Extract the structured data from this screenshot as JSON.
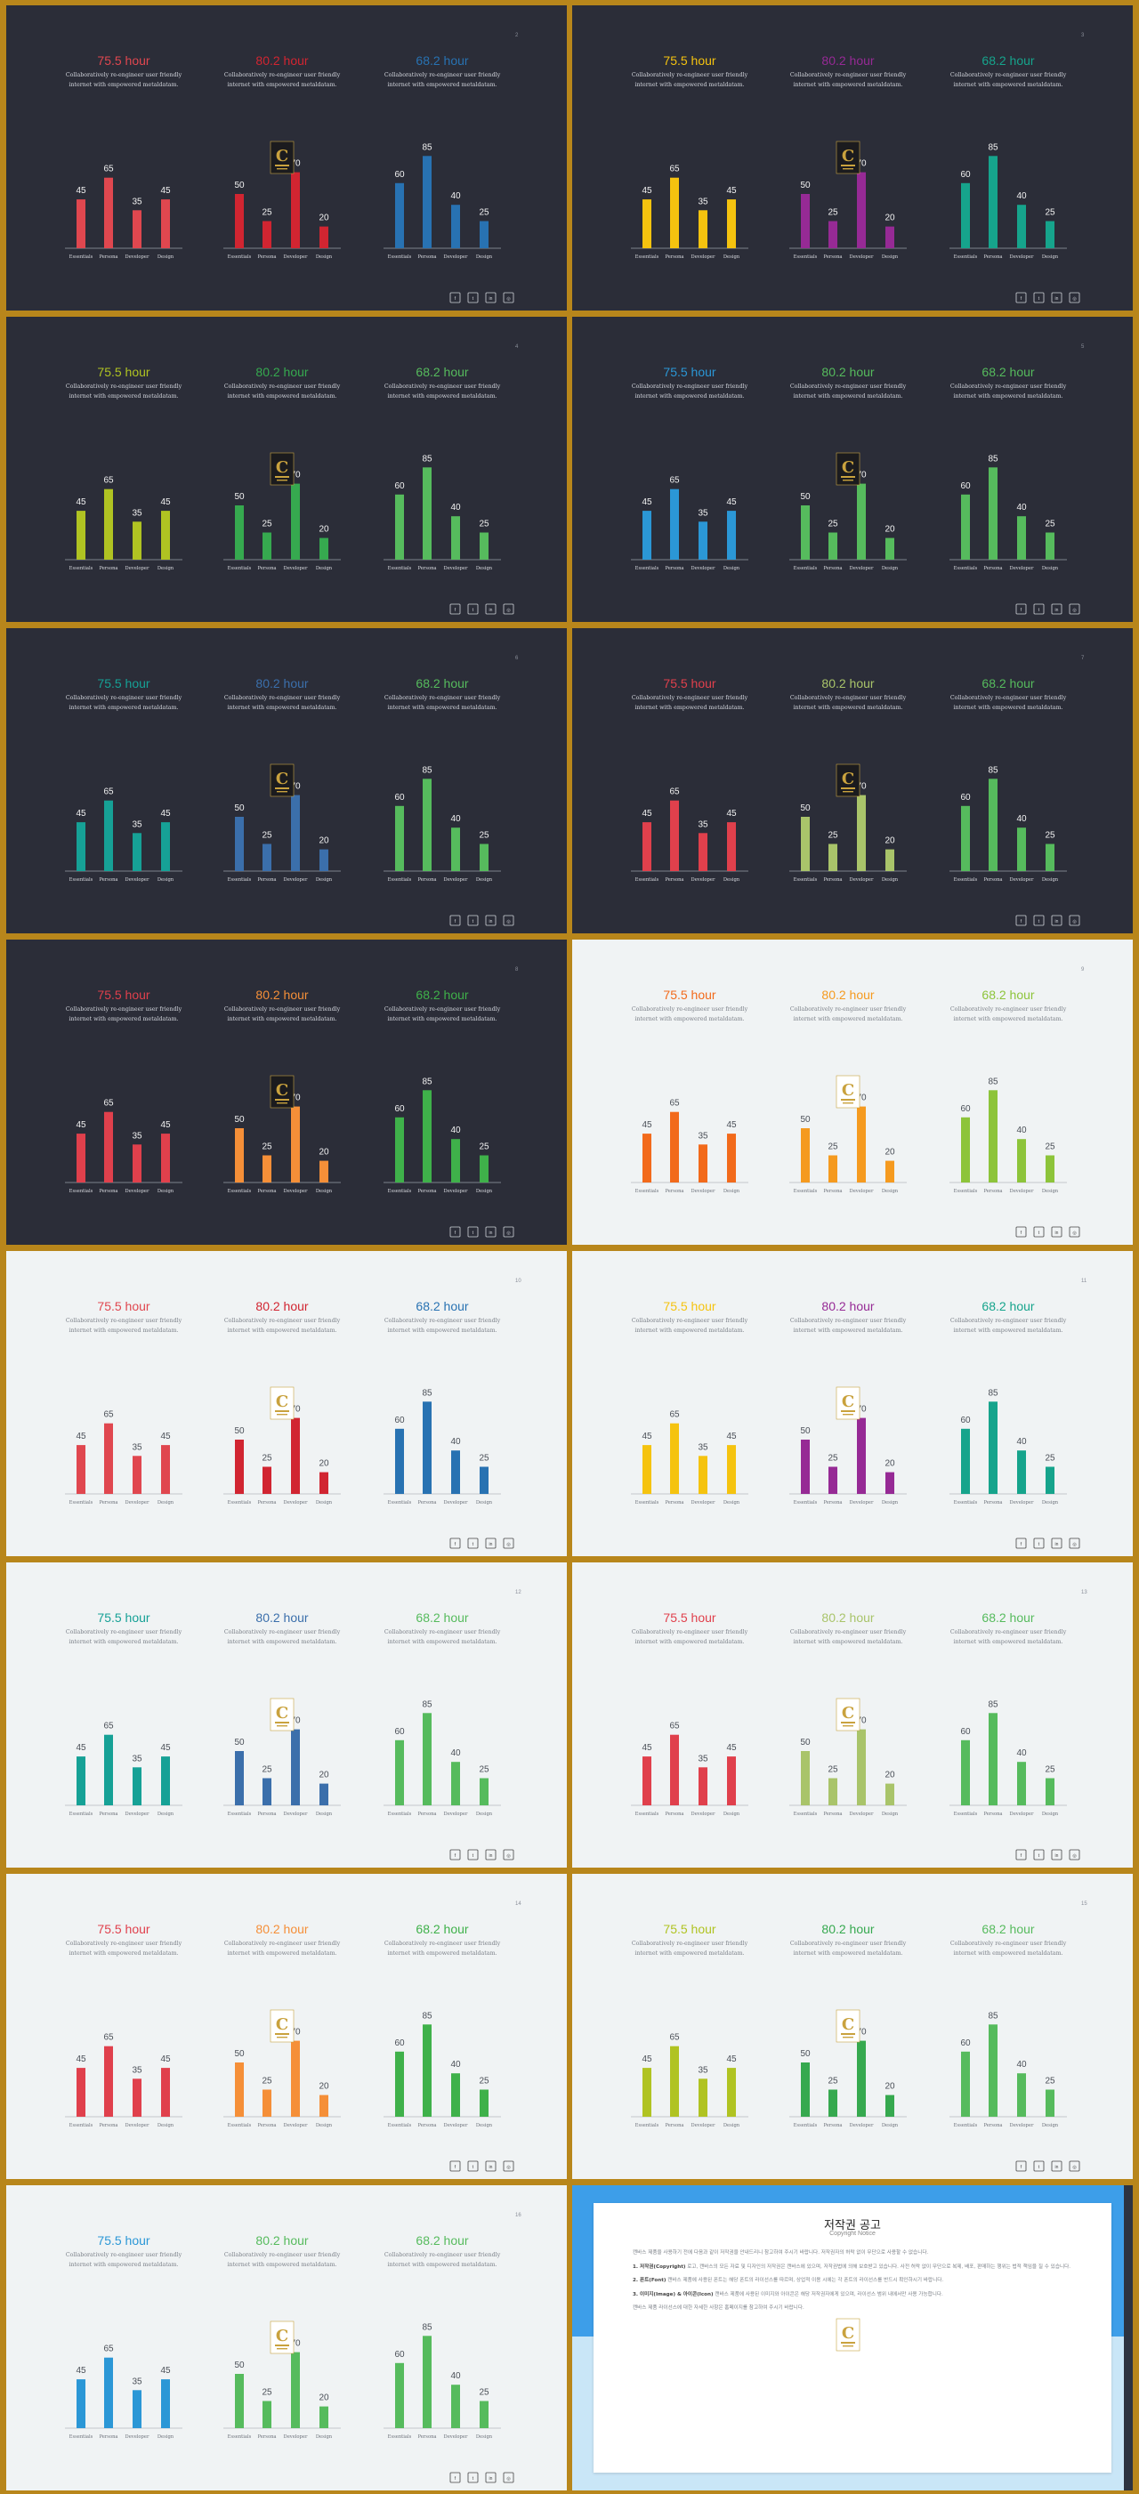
{
  "common": {
    "hours": [
      "75.5 hour",
      "80.2 hour",
      "68.2 hour"
    ],
    "subtitle_line1": "Collaboratively re-engineer user friendly",
    "subtitle_line2": "internet with empowered metaldatam.",
    "social_icons": [
      "facebook-icon",
      "twitter-icon",
      "linkedin-icon",
      "instagram-icon"
    ]
  },
  "chart_data": [
    {
      "type": "bar",
      "categories": [
        "Essentials",
        "Persona",
        "Developer",
        "Design"
      ],
      "values": [
        45,
        65,
        35,
        45
      ],
      "title": "75.5 hour"
    },
    {
      "type": "bar",
      "categories": [
        "Essentials",
        "Persona",
        "Developer",
        "Design"
      ],
      "values": [
        50,
        25,
        70,
        20
      ],
      "title": "80.2 hour"
    },
    {
      "type": "bar",
      "categories": [
        "Essentials",
        "Persona",
        "Developer",
        "Design"
      ],
      "values": [
        60,
        85,
        40,
        25
      ],
      "title": "68.2 hour"
    }
  ],
  "slides": [
    {
      "page": "2",
      "theme": "dark",
      "colors": [
        "#e0474f",
        "#d12531",
        "#2872b2"
      ]
    },
    {
      "page": "3",
      "theme": "dark",
      "colors": [
        "#f5c30f",
        "#962a95",
        "#16a48c"
      ]
    },
    {
      "page": "4",
      "theme": "dark",
      "colors": [
        "#b0c322",
        "#36a94f",
        "#56bb5d"
      ]
    },
    {
      "page": "5",
      "theme": "dark",
      "colors": [
        "#2b97d6",
        "#56bb5d",
        "#56bb5d"
      ]
    },
    {
      "page": "6",
      "theme": "dark",
      "colors": [
        "#16a196",
        "#3b6fab",
        "#56bb5d"
      ]
    },
    {
      "page": "7",
      "theme": "dark",
      "colors": [
        "#e0404c",
        "#a9c46a",
        "#56bb5d"
      ]
    },
    {
      "page": "8",
      "theme": "dark",
      "colors": [
        "#e0404c",
        "#f58f38",
        "#3fb14a"
      ]
    },
    {
      "page": "9",
      "theme": "light",
      "colors": [
        "#f26a1b",
        "#f59a1f",
        "#8dc43a"
      ]
    },
    {
      "page": "10",
      "theme": "light",
      "colors": [
        "#e0474f",
        "#d12531",
        "#2872b2"
      ]
    },
    {
      "page": "11",
      "theme": "light",
      "colors": [
        "#f5c30f",
        "#962a95",
        "#16a48c"
      ]
    },
    {
      "page": "12",
      "theme": "light",
      "colors": [
        "#16a196",
        "#3b6fab",
        "#56bb5d"
      ]
    },
    {
      "page": "13",
      "theme": "light",
      "colors": [
        "#e0404c",
        "#a9c46a",
        "#56bb5d"
      ]
    },
    {
      "page": "14",
      "theme": "light",
      "colors": [
        "#e0404c",
        "#f58f38",
        "#3fb14a"
      ]
    },
    {
      "page": "15",
      "theme": "light",
      "colors": [
        "#b0c322",
        "#36a94f",
        "#56bb5d"
      ]
    },
    {
      "page": "16",
      "theme": "light",
      "colors": [
        "#2b97d6",
        "#56bb5d",
        "#56bb5d"
      ]
    }
  ],
  "copyright": {
    "title": "저작권 공고",
    "subtitle": "Copyright Notice",
    "intro": "캔바스 제품을 사용하기 전에 다음과 같이 저작권을 안내드리니 참고하여 주시기 바랍니다. 저작권자의 허락 없이 무단으로 사용할 수 없습니다.",
    "p1_head": "1. 저작권(Copyright)",
    "p1": "로고, 캔바스의 모든 자료 및 디자인의 저작권은 캔바스에 있으며, 저작권법에 의해 보호받고 있습니다. 사전 허락 없이 무단으로 복제, 배포, 판매하는 행위는 법적 책임을 질 수 있습니다.",
    "p2_head": "2. 폰트(Font)",
    "p2": "캔바스 제품에 사용된 폰트는 해당 폰트의 라이선스를 따르며, 상업적 이용 시에는 각 폰트의 라이선스를 반드시 확인하시기 바랍니다.",
    "p3_head": "3. 이미지(Image) & 아이콘(Icon)",
    "p3": "캔바스 제품에 사용된 이미지와 아이콘은 해당 저작권자에게 있으며, 라이선스 범위 내에서만 사용 가능합니다.",
    "footer": "캔바스 제품 라이선스에 대한 자세한 사항은 홈페이지를 참고하여 주시기 바랍니다."
  }
}
